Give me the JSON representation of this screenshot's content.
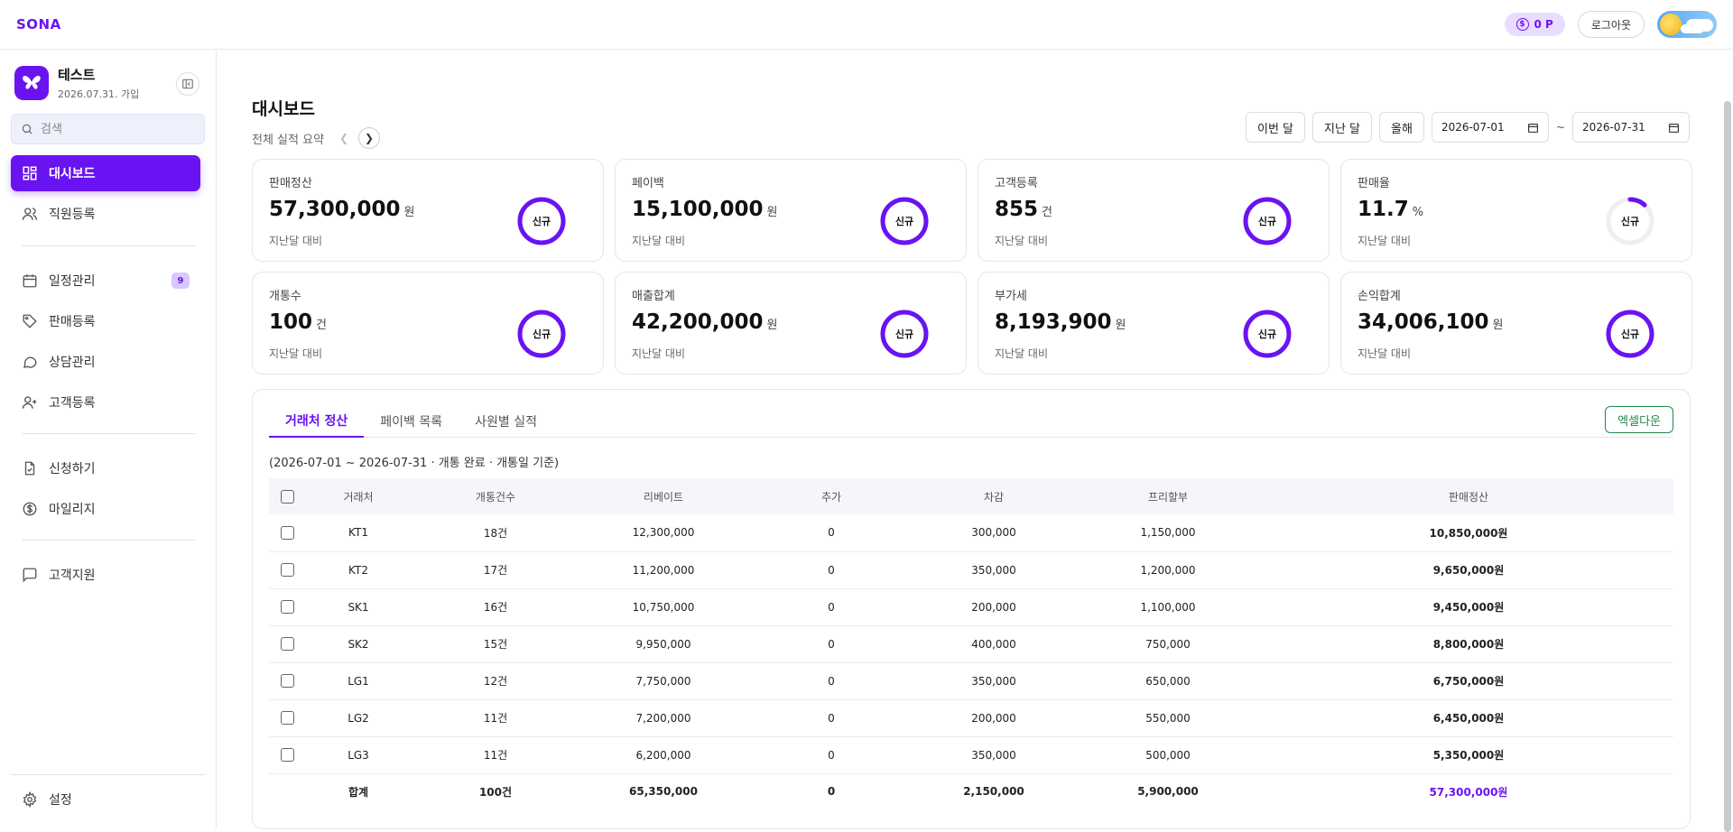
{
  "brand": "SONA",
  "top": {
    "points": "0 P",
    "logout": "로그아웃"
  },
  "profile": {
    "name": "테스트",
    "date": "2026.07.31. 가입"
  },
  "search": {
    "placeholder": "검색"
  },
  "nav": {
    "dashboard": "대시보드",
    "staff": "직원등록",
    "schedule": "일정관리",
    "schedule_badge": "9",
    "sales": "판매등록",
    "consult": "상담관리",
    "customer": "고객등록",
    "apply": "신청하기",
    "mileage": "마일리지",
    "support": "고객지원",
    "settings": "설정"
  },
  "page": {
    "title": "대시보드",
    "subtitle": "전체 실적 요약"
  },
  "filters": {
    "this_month": "이번 달",
    "last_month": "지난 달",
    "this_year": "올해",
    "start_date": "2026-07-01",
    "tilde": "~",
    "end_date": "2026-07-31"
  },
  "cards": [
    {
      "label": "판매정산",
      "value": "57,300,000",
      "unit": "원",
      "compare": "지난달 대비",
      "badge": "신규",
      "ring": 1.0
    },
    {
      "label": "페이백",
      "value": "15,100,000",
      "unit": "원",
      "compare": "지난달 대비",
      "badge": "신규",
      "ring": 1.0
    },
    {
      "label": "고객등록",
      "value": "855",
      "unit": "건",
      "compare": "지난달 대비",
      "badge": "신규",
      "ring": 1.0
    },
    {
      "label": "판매율",
      "value": "11.7",
      "unit": "%",
      "compare": "지난달 대비",
      "badge": "신규",
      "ring": 0.117
    },
    {
      "label": "개통수",
      "value": "100",
      "unit": "건",
      "compare": "지난달 대비",
      "badge": "신규",
      "ring": 1.0
    },
    {
      "label": "매출합계",
      "value": "42,200,000",
      "unit": "원",
      "compare": "지난달 대비",
      "badge": "신규",
      "ring": 1.0
    },
    {
      "label": "부가세",
      "value": "8,193,900",
      "unit": "원",
      "compare": "지난달 대비",
      "badge": "신규",
      "ring": 1.0
    },
    {
      "label": "손익합계",
      "value": "34,006,100",
      "unit": "원",
      "compare": "지난달 대비",
      "badge": "신규",
      "ring": 1.0
    }
  ],
  "tabs": [
    "거래처 정산",
    "페이백 목록",
    "사원별 실적"
  ],
  "excel": "엑셀다운",
  "period": "(2026-07-01 ~ 2026-07-31 · 개통 완료 · 개통일 기준)",
  "table": {
    "headers": [
      "거래처",
      "개통건수",
      "리베이트",
      "추가",
      "차감",
      "프리할부",
      "판매정산"
    ],
    "rows": [
      [
        "KT1",
        "18건",
        "12,300,000",
        "0",
        "300,000",
        "1,150,000",
        "10,850,000원"
      ],
      [
        "KT2",
        "17건",
        "11,200,000",
        "0",
        "350,000",
        "1,200,000",
        "9,650,000원"
      ],
      [
        "SK1",
        "16건",
        "10,750,000",
        "0",
        "200,000",
        "1,100,000",
        "9,450,000원"
      ],
      [
        "SK2",
        "15건",
        "9,950,000",
        "0",
        "400,000",
        "750,000",
        "8,800,000원"
      ],
      [
        "LG1",
        "12건",
        "7,750,000",
        "0",
        "350,000",
        "650,000",
        "6,750,000원"
      ],
      [
        "LG2",
        "11건",
        "7,200,000",
        "0",
        "200,000",
        "550,000",
        "6,450,000원"
      ],
      [
        "LG3",
        "11건",
        "6,200,000",
        "0",
        "350,000",
        "500,000",
        "5,350,000원"
      ]
    ],
    "total": [
      "합계",
      "100건",
      "65,350,000",
      "0",
      "2,150,000",
      "5,900,000",
      "57,300,000원"
    ]
  },
  "colors": {
    "accent": "#6a13f2",
    "excel": "#1f8a4c"
  }
}
